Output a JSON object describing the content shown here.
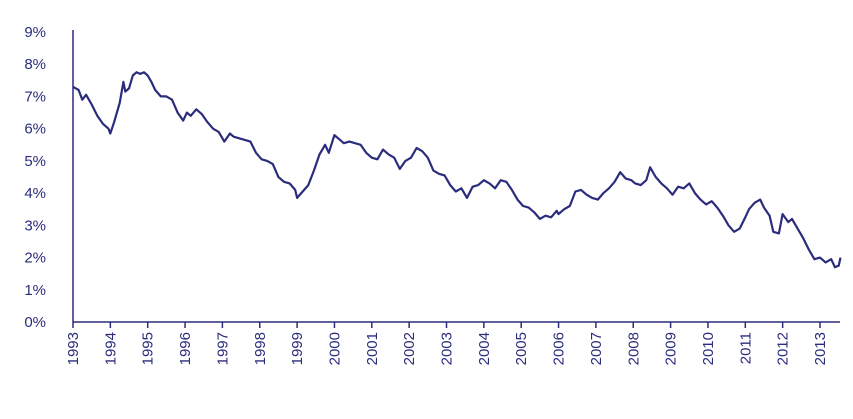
{
  "chart_data": {
    "type": "line",
    "title": "",
    "xlabel": "",
    "ylabel": "",
    "ylim": [
      0,
      9
    ],
    "xlim": [
      1993.0,
      2013.55
    ],
    "grid": false,
    "legend": "none",
    "y_ticks": [
      {
        "value": 0,
        "label": "0%"
      },
      {
        "value": 1,
        "label": "1%"
      },
      {
        "value": 2,
        "label": "2%"
      },
      {
        "value": 3,
        "label": "3%"
      },
      {
        "value": 4,
        "label": "4%"
      },
      {
        "value": 5,
        "label": "5%"
      },
      {
        "value": 6,
        "label": "6%"
      },
      {
        "value": 7,
        "label": "7%"
      },
      {
        "value": 8,
        "label": "8%"
      },
      {
        "value": 9,
        "label": "9%"
      }
    ],
    "x_ticks": [
      {
        "value": 1993,
        "label": "1993"
      },
      {
        "value": 1994,
        "label": "1994"
      },
      {
        "value": 1995,
        "label": "1995"
      },
      {
        "value": 1996,
        "label": "1996"
      },
      {
        "value": 1997,
        "label": "1997"
      },
      {
        "value": 1998,
        "label": "1998"
      },
      {
        "value": 1999,
        "label": "1999"
      },
      {
        "value": 2000,
        "label": "2000"
      },
      {
        "value": 2001,
        "label": "2001"
      },
      {
        "value": 2002,
        "label": "2002"
      },
      {
        "value": 2003,
        "label": "2003"
      },
      {
        "value": 2004,
        "label": "2004"
      },
      {
        "value": 2005,
        "label": "2005"
      },
      {
        "value": 2006,
        "label": "2006"
      },
      {
        "value": 2007,
        "label": "2007"
      },
      {
        "value": 2008,
        "label": "2008"
      },
      {
        "value": 2009,
        "label": "2009"
      },
      {
        "value": 2010,
        "label": "2010"
      },
      {
        "value": 2011,
        "label": "2011"
      },
      {
        "value": 2012,
        "label": "2012"
      },
      {
        "value": 2013,
        "label": "2013"
      }
    ],
    "series": [
      {
        "color": "#2b2c7c",
        "x": [
          1993.0,
          1993.15,
          1993.25,
          1993.35,
          1993.5,
          1993.65,
          1993.8,
          1993.95,
          1994.0,
          1994.1,
          1994.25,
          1994.35,
          1994.4,
          1994.5,
          1994.6,
          1994.7,
          1994.8,
          1994.9,
          1995.0,
          1995.1,
          1995.2,
          1995.35,
          1995.5,
          1995.65,
          1995.8,
          1995.95,
          1996.05,
          1996.15,
          1996.3,
          1996.45,
          1996.6,
          1996.75,
          1996.9,
          1997.05,
          1997.2,
          1997.3,
          1997.45,
          1997.6,
          1997.75,
          1997.9,
          1998.05,
          1998.2,
          1998.35,
          1998.5,
          1998.65,
          1998.8,
          1998.95,
          1999.0,
          1999.15,
          1999.3,
          1999.45,
          1999.6,
          1999.75,
          1999.85,
          2000.0,
          2000.1,
          2000.25,
          2000.4,
          2000.55,
          2000.7,
          2000.85,
          2001.0,
          2001.15,
          2001.3,
          2001.45,
          2001.6,
          2001.75,
          2001.9,
          2002.05,
          2002.2,
          2002.35,
          2002.5,
          2002.65,
          2002.8,
          2002.95,
          2003.1,
          2003.25,
          2003.4,
          2003.55,
          2003.7,
          2003.85,
          2004.0,
          2004.15,
          2004.3,
          2004.45,
          2004.6,
          2004.75,
          2004.9,
          2005.05,
          2005.2,
          2005.35,
          2005.5,
          2005.65,
          2005.8,
          2005.95,
          2006.0,
          2006.15,
          2006.3,
          2006.45,
          2006.6,
          2006.75,
          2006.9,
          2007.05,
          2007.2,
          2007.35,
          2007.5,
          2007.65,
          2007.8,
          2007.95,
          2008.05,
          2008.2,
          2008.35,
          2008.45,
          2008.6,
          2008.75,
          2008.9,
          2009.05,
          2009.2,
          2009.35,
          2009.5,
          2009.65,
          2009.8,
          2009.95,
          2010.1,
          2010.25,
          2010.4,
          2010.55,
          2010.7,
          2010.85,
          2011.0,
          2011.1,
          2011.25,
          2011.4,
          2011.5,
          2011.65,
          2011.75,
          2011.9,
          2012.0,
          2012.15,
          2012.25,
          2012.4,
          2012.55,
          2012.7,
          2012.85,
          2013.0,
          2013.15,
          2013.3,
          2013.4,
          2013.5,
          2013.55
        ],
        "y": [
          7.3,
          7.2,
          6.9,
          7.05,
          6.75,
          6.4,
          6.15,
          6.0,
          5.85,
          6.2,
          6.8,
          7.45,
          7.15,
          7.25,
          7.65,
          7.75,
          7.7,
          7.75,
          7.65,
          7.45,
          7.2,
          7.0,
          7.0,
          6.9,
          6.5,
          6.25,
          6.5,
          6.4,
          6.6,
          6.45,
          6.2,
          6.0,
          5.9,
          5.6,
          5.85,
          5.75,
          5.7,
          5.65,
          5.6,
          5.25,
          5.05,
          5.0,
          4.9,
          4.5,
          4.35,
          4.3,
          4.1,
          3.85,
          4.05,
          4.25,
          4.7,
          5.2,
          5.5,
          5.25,
          5.8,
          5.7,
          5.55,
          5.6,
          5.55,
          5.5,
          5.25,
          5.1,
          5.05,
          5.35,
          5.2,
          5.1,
          4.75,
          5.0,
          5.1,
          5.4,
          5.3,
          5.1,
          4.7,
          4.6,
          4.55,
          4.25,
          4.05,
          4.15,
          3.85,
          4.2,
          4.25,
          4.4,
          4.3,
          4.15,
          4.4,
          4.35,
          4.1,
          3.8,
          3.6,
          3.55,
          3.4,
          3.2,
          3.3,
          3.25,
          3.45,
          3.35,
          3.5,
          3.6,
          4.05,
          4.1,
          3.95,
          3.85,
          3.8,
          4.0,
          4.15,
          4.35,
          4.65,
          4.45,
          4.4,
          4.3,
          4.25,
          4.4,
          4.8,
          4.5,
          4.3,
          4.15,
          3.95,
          4.2,
          4.15,
          4.3,
          4.0,
          3.8,
          3.65,
          3.75,
          3.55,
          3.3,
          3.0,
          2.8,
          2.9,
          3.25,
          3.5,
          3.7,
          3.8,
          3.55,
          3.3,
          2.8,
          2.75,
          3.35,
          3.1,
          3.2,
          2.9,
          2.6,
          2.25,
          1.95,
          2.0,
          1.85,
          1.95,
          1.7,
          1.75,
          2.0
        ]
      }
    ]
  }
}
